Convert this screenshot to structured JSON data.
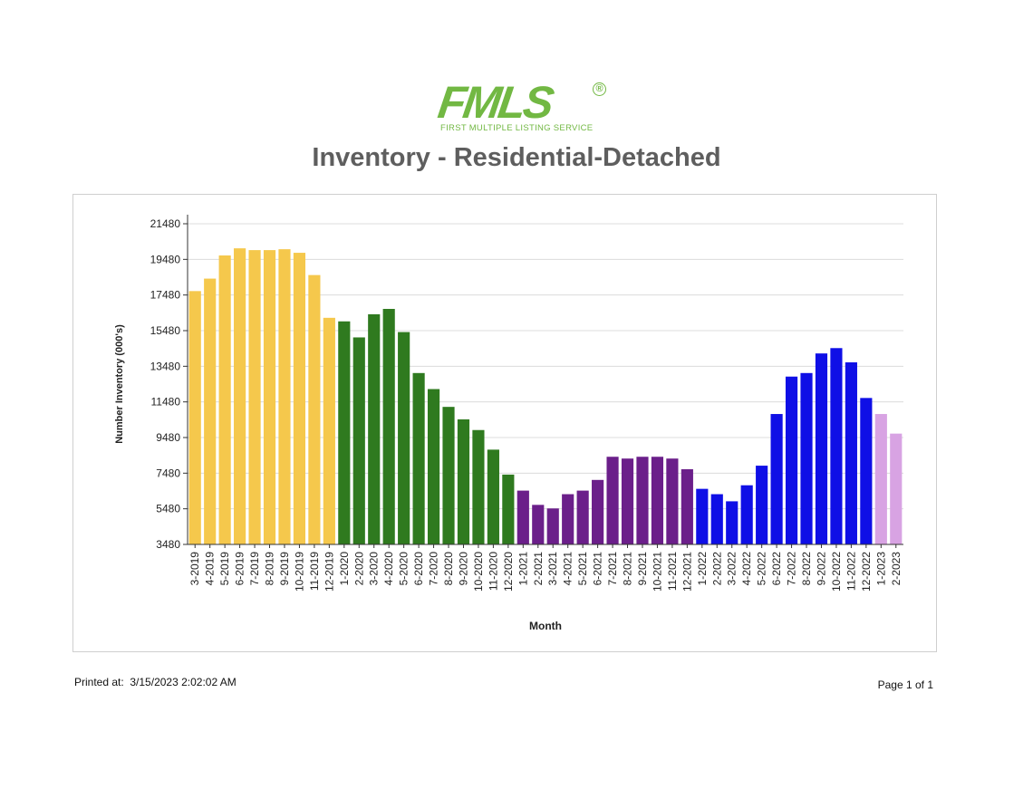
{
  "header": {
    "logo_text": "FMLS",
    "logo_registered": "®",
    "logo_subtitle": "FIRST MULTIPLE LISTING SERVICE",
    "logo_color": "#72b843",
    "title": "Inventory - Residential-Detached"
  },
  "footer": {
    "printed_label": "Printed at:",
    "printed_value": "3/15/2023 2:02:02 AM",
    "page_label": "Page 1 of 1"
  },
  "chart_data": {
    "type": "bar",
    "title": "Inventory - Residential-Detached",
    "xlabel": "Month",
    "ylabel": "Number Inventory (000's)",
    "ylim": [
      3480,
      21480
    ],
    "yticks": [
      3480,
      5480,
      7480,
      9480,
      11480,
      13480,
      15480,
      17480,
      19480,
      21480
    ],
    "grid": true,
    "legend": "none",
    "categories": [
      "3-2019",
      "4-2019",
      "5-2019",
      "6-2019",
      "7-2019",
      "8-2019",
      "9-2019",
      "10-2019",
      "11-2019",
      "12-2019",
      "1-2020",
      "2-2020",
      "3-2020",
      "4-2020",
      "5-2020",
      "6-2020",
      "7-2020",
      "8-2020",
      "9-2020",
      "10-2020",
      "11-2020",
      "12-2020",
      "1-2021",
      "2-2021",
      "3-2021",
      "4-2021",
      "5-2021",
      "6-2021",
      "7-2021",
      "8-2021",
      "9-2021",
      "10-2021",
      "11-2021",
      "12-2021",
      "1-2022",
      "2-2022",
      "3-2022",
      "4-2022",
      "5-2022",
      "6-2022",
      "7-2022",
      "8-2022",
      "9-2022",
      "10-2022",
      "11-2022",
      "12-2022",
      "1-2023",
      "2-2023"
    ],
    "values": [
      17700,
      18400,
      19700,
      20100,
      20000,
      20000,
      20050,
      19850,
      18600,
      16200,
      16000,
      15100,
      16400,
      16700,
      15400,
      13100,
      12200,
      11200,
      10500,
      9900,
      8800,
      7400,
      6500,
      5700,
      5500,
      6300,
      6500,
      7100,
      8400,
      8300,
      8400,
      8400,
      8300,
      7700,
      6600,
      6300,
      5900,
      6800,
      7900,
      10800,
      12900,
      13100,
      14200,
      14500,
      13700,
      11700,
      10800,
      9700
    ],
    "colors": [
      "#f5c84c",
      "#f5c84c",
      "#f5c84c",
      "#f5c84c",
      "#f5c84c",
      "#f5c84c",
      "#f5c84c",
      "#f5c84c",
      "#f5c84c",
      "#f5c84c",
      "#2f7a1f",
      "#2f7a1f",
      "#2f7a1f",
      "#2f7a1f",
      "#2f7a1f",
      "#2f7a1f",
      "#2f7a1f",
      "#2f7a1f",
      "#2f7a1f",
      "#2f7a1f",
      "#2f7a1f",
      "#2f7a1f",
      "#6b1f8a",
      "#6b1f8a",
      "#6b1f8a",
      "#6b1f8a",
      "#6b1f8a",
      "#6b1f8a",
      "#6b1f8a",
      "#6b1f8a",
      "#6b1f8a",
      "#6b1f8a",
      "#6b1f8a",
      "#6b1f8a",
      "#0f0fe6",
      "#0f0fe6",
      "#0f0fe6",
      "#0f0fe6",
      "#0f0fe6",
      "#0f0fe6",
      "#0f0fe6",
      "#0f0fe6",
      "#0f0fe6",
      "#0f0fe6",
      "#0f0fe6",
      "#0f0fe6",
      "#d8a3e3",
      "#d8a3e3"
    ]
  }
}
